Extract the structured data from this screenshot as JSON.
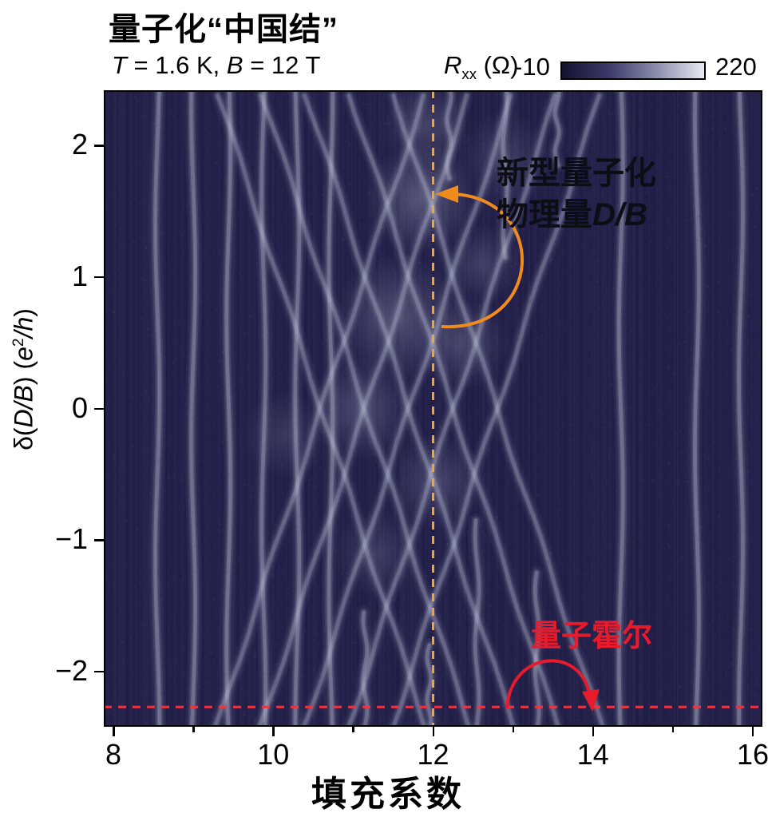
{
  "title": "量子化“中国结”",
  "conditions": {
    "t_symbol": "T",
    "t_rest": " = 1.6 K, ",
    "b_symbol": "B",
    "b_rest": " = 12 T"
  },
  "colorbar": {
    "r_symbol": "R",
    "r_subscript": "xx",
    "unit": " (Ω)",
    "min_label": "-10",
    "max_label": "220",
    "gradient": [
      "#14122f",
      "#3d3a6b",
      "#8c8eae",
      "#e9e9f2"
    ]
  },
  "y_axis": {
    "prefix": "δ(",
    "italic_db": "D/B",
    "mid": ") (",
    "italic_e": "e",
    "superscript": "2",
    "suffix_italic": "/h",
    "close": ")"
  },
  "x_axis": {
    "label": "填充系数"
  },
  "annotations": {
    "new_quantity_line1": "新型量子化",
    "new_quantity_line2_prefix": "物理量",
    "new_quantity_line2_italic": "D/B",
    "quantum_hall": "量子霍尔",
    "arrow_orange_color": "#f08c1e",
    "arrow_red_color": "#e81b2c",
    "dash_orange_color": "#f0a535",
    "dash_red_color": "#ef3340",
    "text_color_dark": "#0d0d16"
  },
  "chart_data": {
    "type": "heatmap",
    "title": "量子化“中国结”",
    "subtitle": "T = 1.6 K, B = 12 T",
    "xlabel": "填充系数",
    "ylabel": "δ(D/B) (e²/h)",
    "value_label": "Rxx (Ω)",
    "value_range": [
      -10,
      220
    ],
    "xlim": [
      7.88,
      16.12
    ],
    "ylim": [
      -2.42,
      2.42
    ],
    "x_ticks": [
      {
        "value": 8,
        "label": "8"
      },
      {
        "value": 10,
        "label": "10"
      },
      {
        "value": 12,
        "label": "12"
      },
      {
        "value": 14,
        "label": "14"
      },
      {
        "value": 16,
        "label": "16"
      }
    ],
    "x_minor_ticks": [
      9,
      11,
      13,
      15
    ],
    "y_ticks": [
      {
        "value": 2,
        "label": "2"
      },
      {
        "value": 1,
        "label": "1"
      },
      {
        "value": 0,
        "label": "0"
      },
      {
        "value": -1,
        "label": "−1"
      },
      {
        "value": -2,
        "label": "−2"
      }
    ],
    "reference_lines": [
      {
        "axis": "v",
        "value": 12,
        "color": "#f0a535",
        "meaning": "新型量子化物理量 D/B"
      },
      {
        "axis": "h",
        "value": -2.27,
        "color": "#ef3340",
        "meaning": "量子霍尔"
      }
    ],
    "legend_position": "top-right-colorbar",
    "grid": false,
    "heatmap_model": {
      "background": "#211e48",
      "band_color": "205,207,228",
      "vertical_lines": [
        8.55,
        9.0,
        9.44,
        9.88,
        10.3,
        10.72,
        14.35,
        15.3,
        15.85
      ],
      "partial_vertical_lines": [
        {
          "x": 11.15,
          "y0": -2.42,
          "y1": -1.55
        },
        {
          "x": 11.95,
          "y0": -2.42,
          "y1": -1.8
        },
        {
          "x": 12.55,
          "y0": -2.42,
          "y1": -0.85
        },
        {
          "x": 13.3,
          "y0": -2.42,
          "y1": -1.25
        },
        {
          "x": 12.2,
          "y0": 1.75,
          "y1": 2.42
        },
        {
          "x": 12.9,
          "y0": 1.15,
          "y1": 2.42
        },
        {
          "x": 13.55,
          "y0": 1.85,
          "y1": 2.42
        }
      ],
      "diagonal_slope": 1.85,
      "diagonals_up_x_at_zero": [
        10.6,
        11.15,
        11.7,
        12.25,
        12.8
      ],
      "diagonals_down_x_at_zero": [
        10.6,
        11.15,
        11.7,
        12.25,
        12.8
      ],
      "glow_spots": [
        {
          "x": 11.85,
          "y": 1.6,
          "r": 70,
          "a": 0.3
        },
        {
          "x": 11.55,
          "y": 0.7,
          "r": 80,
          "a": 0.26
        },
        {
          "x": 12.35,
          "y": 0.5,
          "r": 60,
          "a": 0.22
        },
        {
          "x": 11.1,
          "y": 0.0,
          "r": 65,
          "a": 0.24
        },
        {
          "x": 12.05,
          "y": -0.55,
          "r": 60,
          "a": 0.2
        },
        {
          "x": 10.15,
          "y": -0.2,
          "r": 55,
          "a": 0.14
        },
        {
          "x": 12.6,
          "y": 1.1,
          "r": 50,
          "a": 0.18
        },
        {
          "x": 11.9,
          "y": 2.15,
          "r": 55,
          "a": 0.2
        },
        {
          "x": 12.9,
          "y": 1.9,
          "r": 60,
          "a": 0.16
        },
        {
          "x": 11.3,
          "y": -1.1,
          "r": 55,
          "a": 0.16
        }
      ]
    }
  }
}
